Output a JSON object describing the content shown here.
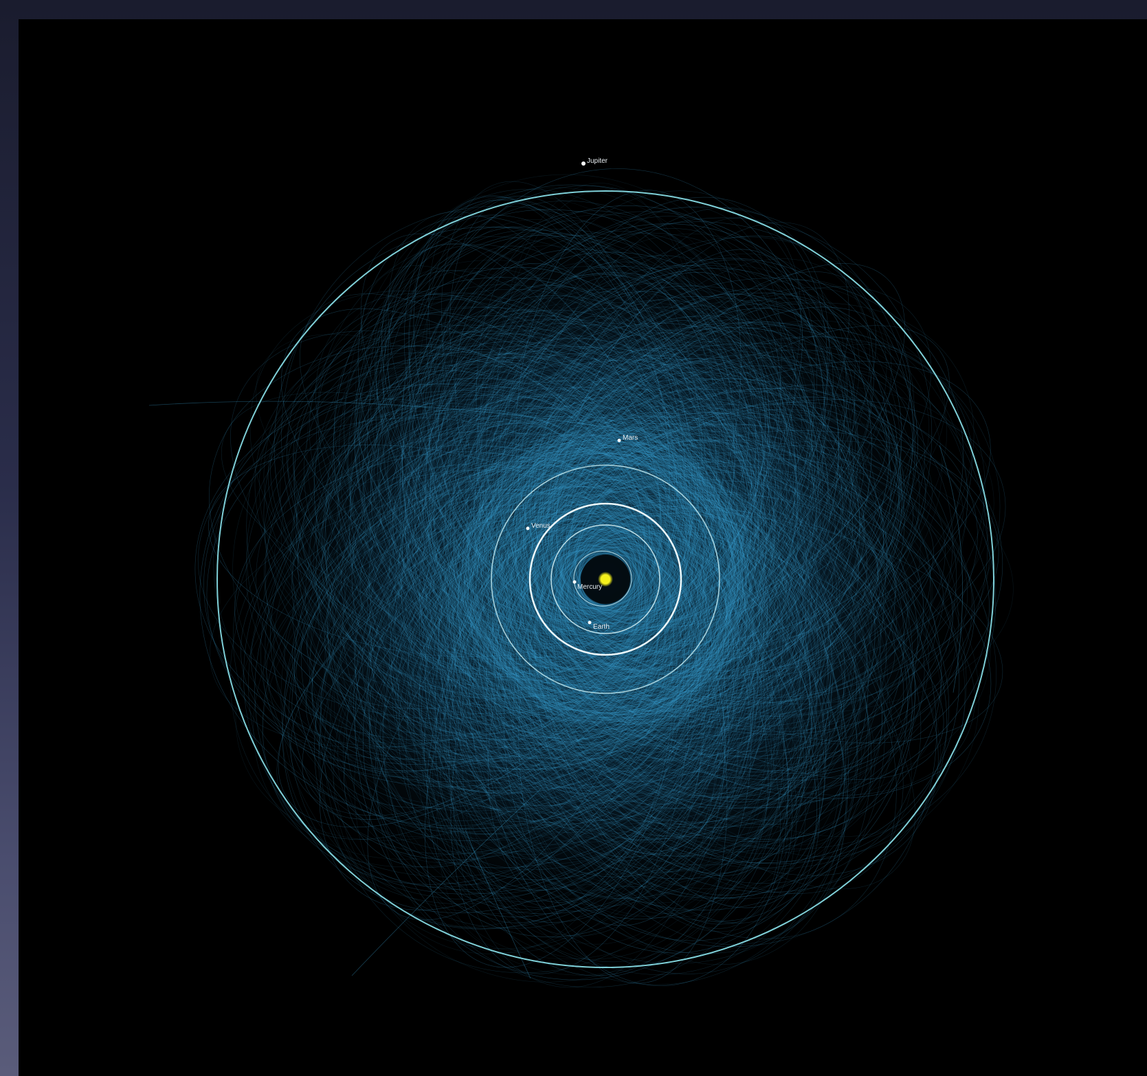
{
  "colors": {
    "background": "#000000",
    "asteroid_orbit": "#3a9fd0",
    "jupiter_orbit": "#7fd0d8",
    "inner_orbit": "#dff4f6",
    "sun": "#f4f01a",
    "label": "#e8eef2"
  },
  "planets": [
    {
      "name": "Mercury"
    },
    {
      "name": "Venus"
    },
    {
      "name": "Earth"
    },
    {
      "name": "Mars"
    },
    {
      "name": "Jupiter"
    }
  ],
  "sun": {
    "icon": "sun-icon"
  }
}
